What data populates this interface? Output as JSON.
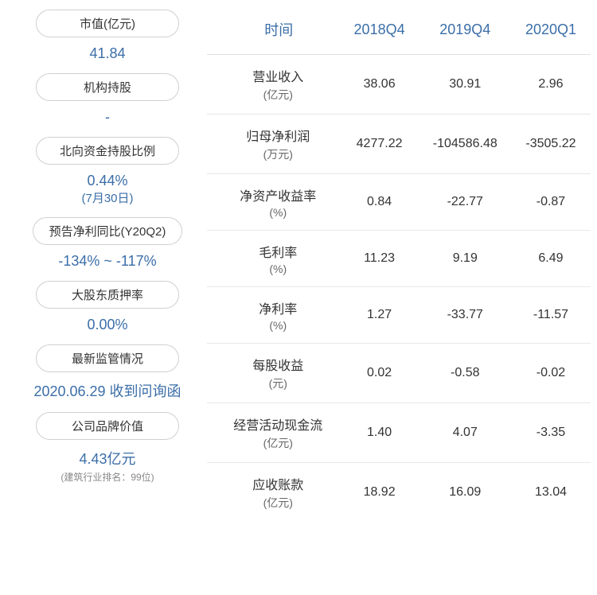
{
  "left": {
    "items": [
      {
        "label": "市值(亿元)",
        "value": "41.84",
        "secondary": null,
        "note": null
      },
      {
        "label": "机构持股",
        "value": "-",
        "secondary": null,
        "note": null
      },
      {
        "label": "北向资金持股比例",
        "value": "0.44%",
        "secondary": "(7月30日)",
        "note": null
      },
      {
        "label": "预告净利同比(Y20Q2)",
        "value": "-134% ~ -117%",
        "secondary": null,
        "note": null
      },
      {
        "label": "大股东质押率",
        "value": "0.00%",
        "secondary": null,
        "note": null
      },
      {
        "label": "最新监管情况",
        "value": "2020.06.29 收到问询函",
        "secondary": null,
        "note": null
      },
      {
        "label": "公司品牌价值",
        "value": "4.43亿元",
        "secondary": null,
        "note": "(建筑行业排名：99位)"
      }
    ]
  },
  "table": {
    "headers": [
      "时间",
      "2018Q4",
      "2019Q4",
      "2020Q1"
    ],
    "rows": [
      {
        "name": "营业收入",
        "unit": "(亿元)",
        "v1": "38.06",
        "v2": "30.91",
        "v3": "2.96"
      },
      {
        "name": "归母净利润",
        "unit": "(万元)",
        "v1": "4277.22",
        "v2": "-104586.48",
        "v3": "-3505.22"
      },
      {
        "name": "净资产收益率",
        "unit": "(%)",
        "v1": "0.84",
        "v2": "-22.77",
        "v3": "-0.87"
      },
      {
        "name": "毛利率",
        "unit": "(%)",
        "v1": "11.23",
        "v2": "9.19",
        "v3": "6.49"
      },
      {
        "name": "净利率",
        "unit": "(%)",
        "v1": "1.27",
        "v2": "-33.77",
        "v3": "-11.57"
      },
      {
        "name": "每股收益",
        "unit": "(元)",
        "v1": "0.02",
        "v2": "-0.58",
        "v3": "-0.02"
      },
      {
        "name": "经营活动现金流",
        "unit": "(亿元)",
        "v1": "1.40",
        "v2": "4.07",
        "v3": "-3.35"
      },
      {
        "name": "应收账款",
        "unit": "(亿元)",
        "v1": "18.92",
        "v2": "16.09",
        "v3": "13.04"
      }
    ]
  },
  "colors": {
    "accent": "#3b6ea8",
    "border": "#d0d0d0",
    "row_border": "#e0e0e0",
    "text": "#333333",
    "muted": "#666666"
  }
}
